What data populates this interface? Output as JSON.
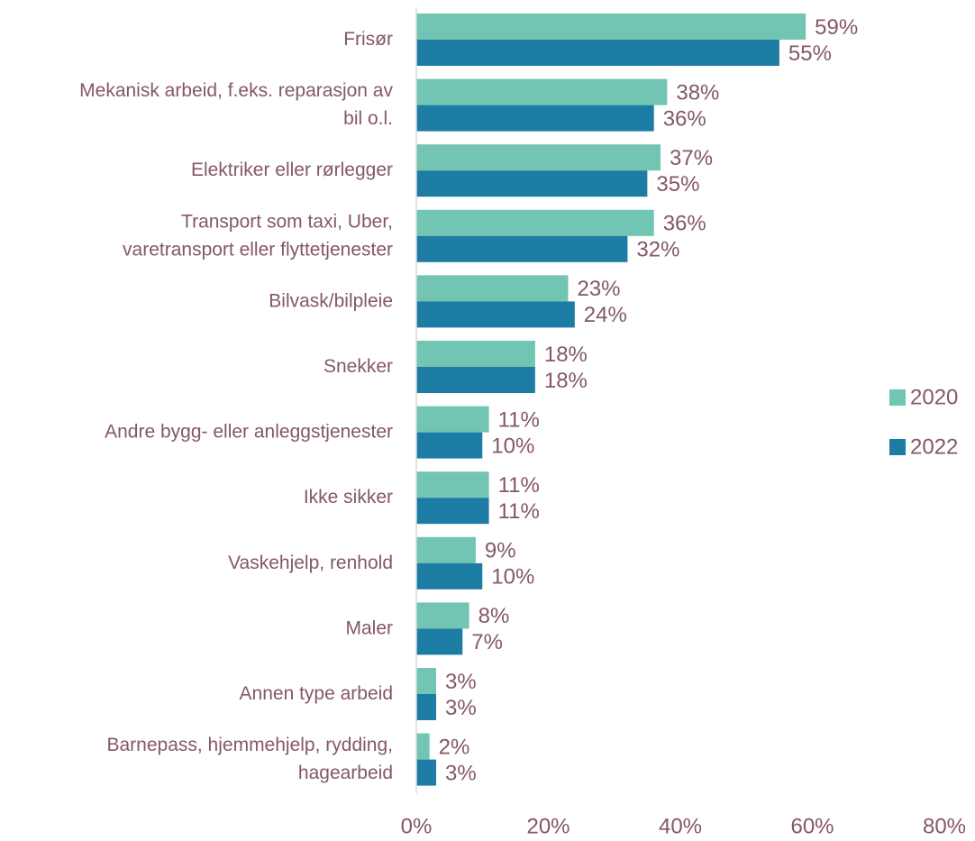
{
  "chart_data": {
    "type": "bar",
    "orientation": "horizontal",
    "categories": [
      "Frisør",
      "Mekanisk arbeid, f.eks. reparasjon av\nbil o.l.",
      "Elektriker eller rørlegger",
      "Transport som taxi, Uber,\nvaretransport eller flyttetjenester",
      "Bilvask/bilpleie",
      "Snekker",
      "Andre bygg- eller anleggstjenester",
      "Ikke sikker",
      "Vaskehjelp, renhold",
      "Maler",
      "Annen type arbeid",
      "Barnepass, hjemmehjelp, rydding,\nhagearbeid"
    ],
    "series": [
      {
        "name": "2020",
        "color": "#72c4b3",
        "values": [
          59,
          38,
          37,
          36,
          23,
          18,
          11,
          11,
          9,
          8,
          3,
          2
        ],
        "value_labels": [
          "59%",
          "38%",
          "37%",
          "36%",
          "23%",
          "18%",
          "11%",
          "11%",
          "9%",
          "8%",
          "3%",
          "2%"
        ]
      },
      {
        "name": "2022",
        "color": "#1c7ca3",
        "values": [
          55,
          36,
          35,
          32,
          24,
          18,
          10,
          11,
          10,
          7,
          3,
          3
        ],
        "value_labels": [
          "55%",
          "36%",
          "35%",
          "32%",
          "24%",
          "18%",
          "10%",
          "11%",
          "10%",
          "7%",
          "3%",
          "3%"
        ]
      }
    ],
    "xlim": [
      0,
      80
    ],
    "xticks": [
      {
        "value": 0,
        "label": "0%"
      },
      {
        "value": 20,
        "label": "20%"
      },
      {
        "value": 40,
        "label": "40%"
      },
      {
        "value": 60,
        "label": "60%"
      },
      {
        "value": 80,
        "label": "80%"
      }
    ],
    "legend": "right"
  }
}
